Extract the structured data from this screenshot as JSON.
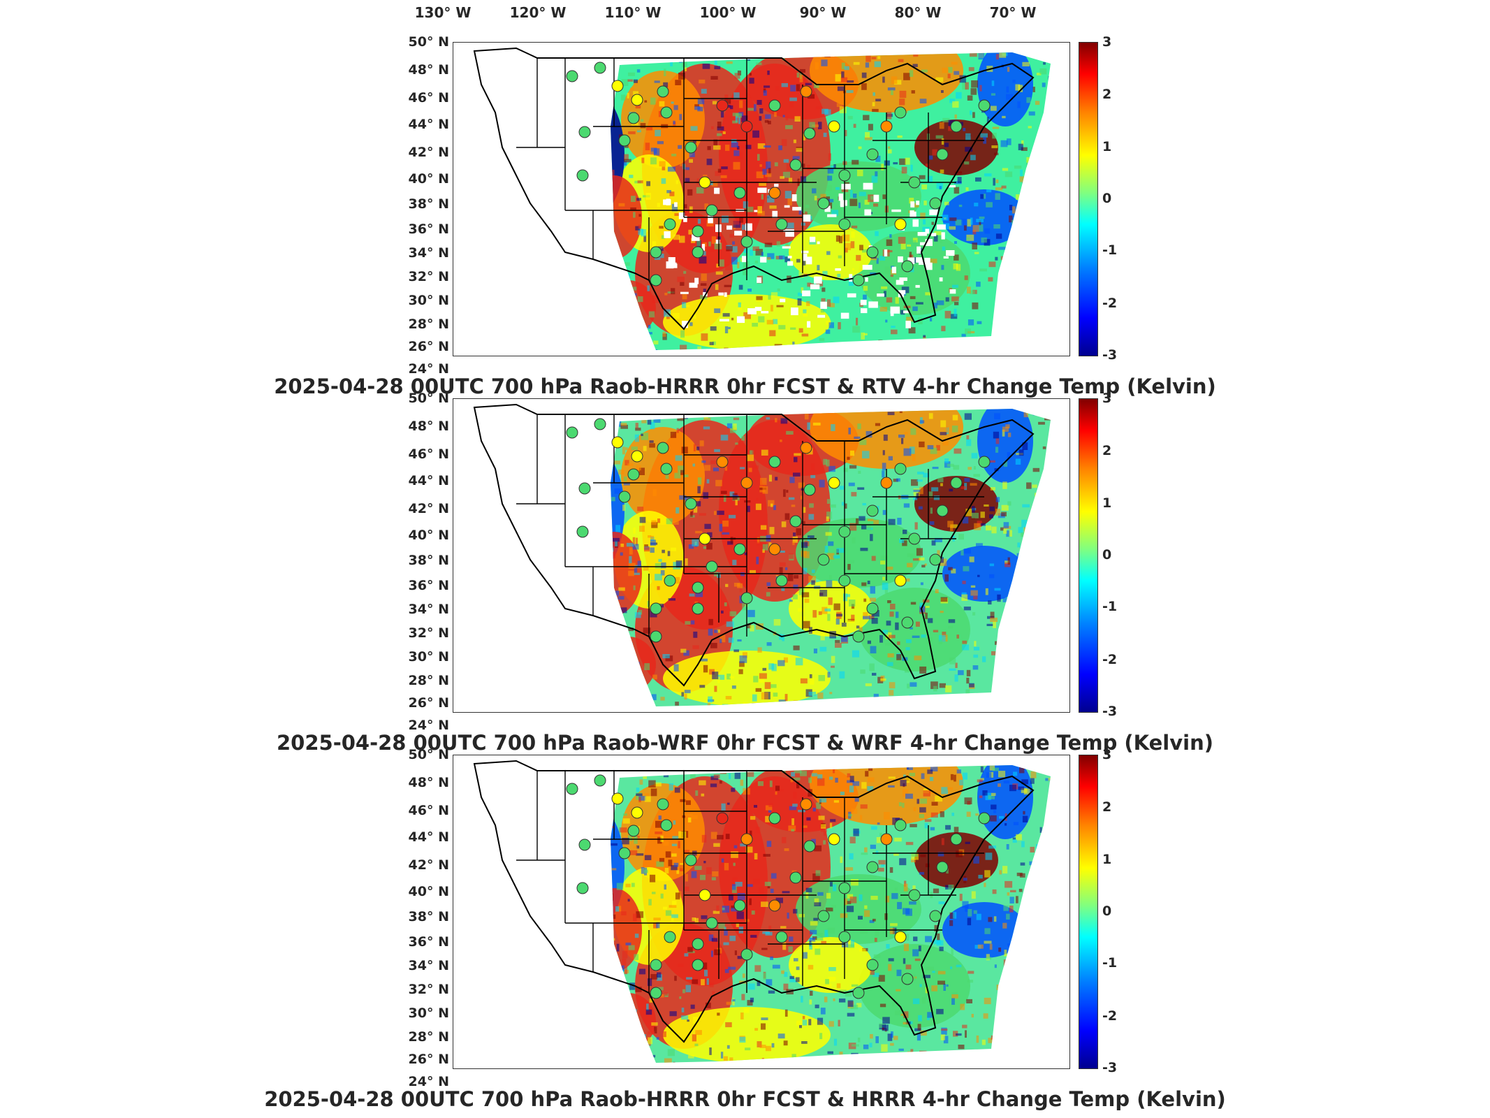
{
  "lon_labels": [
    "130° W",
    "120° W",
    "110° W",
    "100° W",
    "90° W",
    "80° W",
    "70° W"
  ],
  "lat_labels": [
    "50° N",
    "48° N",
    "46° N",
    "44° N",
    "42° N",
    "40° N",
    "38° N",
    "36° N",
    "34° N",
    "32° N",
    "30° N",
    "28° N",
    "26° N",
    "24° N"
  ],
  "colorbar_ticks": [
    "3",
    "2",
    "1",
    "0",
    "-1",
    "-2",
    "-3"
  ],
  "colorbar_range": [
    -3,
    3
  ],
  "colormap": "jet",
  "panels": [
    {
      "title": "2025-04-28 00UTC 700 hPa Raob-HRRR 0hr FCST & RTV 4-hr Change Temp (Kelvin)"
    },
    {
      "title": "2025-04-28 00UTC 700 hPa Raob-WRF 0hr FCST & WRF 4-hr Change Temp (Kelvin)"
    },
    {
      "title": "2025-04-28 00UTC 700 hPa Raob-HRRR 0hr FCST & HRRR 4-hr Change Temp (Kelvin)"
    }
  ],
  "colors": {
    "red": "#e8281b",
    "orange": "#ff8c00",
    "yellow": "#ffff00",
    "green": "#4cd970",
    "cyan": "#00d5ff",
    "blue": "#0050ff",
    "dark_red": "#800000",
    "dark_blue": "#00008f"
  }
}
